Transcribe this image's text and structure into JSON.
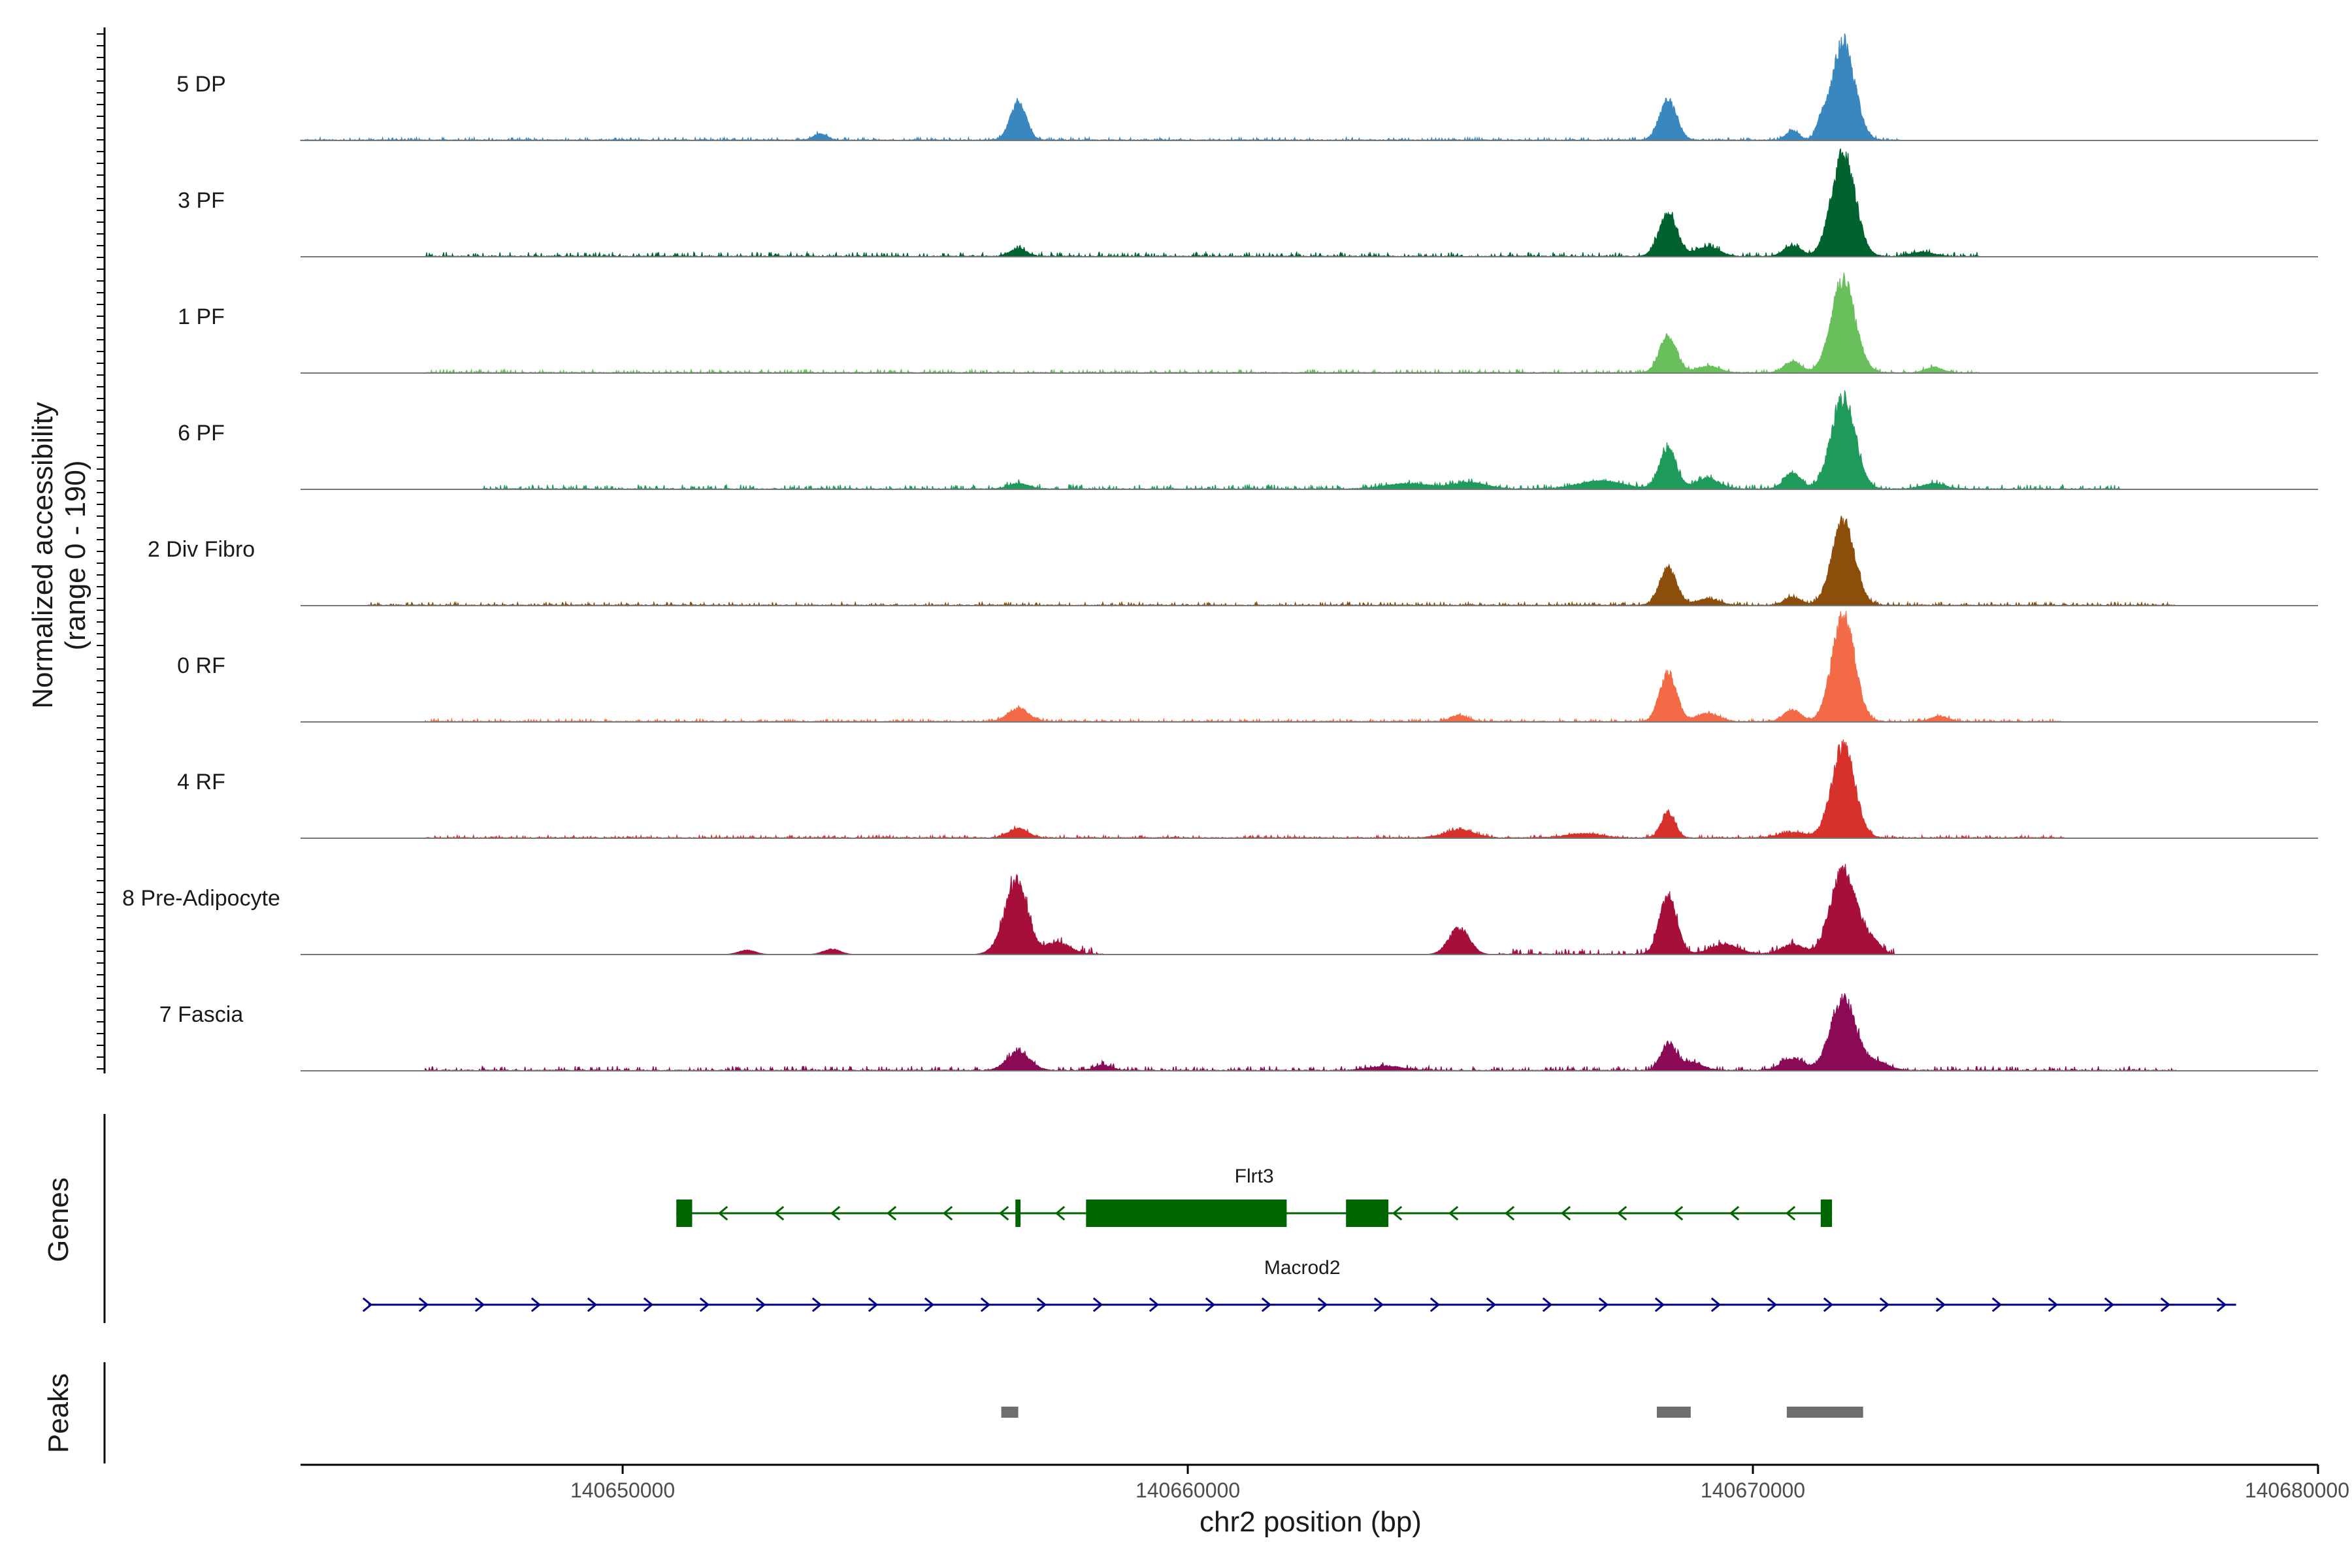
{
  "chart_data": {
    "type": "area",
    "title": "",
    "ylabel_line1": "Normalized accessibility",
    "ylabel_line2": "(range 0 - 190)",
    "ylim": [
      0,
      190
    ],
    "xlabel": "chr2 position (bp)",
    "xlim": [
      140644300,
      140680000
    ],
    "x_ticks": [
      140650000,
      140660000,
      140670000,
      140680000
    ],
    "x_tick_labels": [
      "140650000",
      "140660000",
      "140670000",
      "140680000"
    ],
    "grid": false,
    "series": [
      {
        "name": "5 DP",
        "color": "#3A87C0",
        "baseline": 4,
        "span": [
          140644300,
          140672600
        ],
        "peaks": [
          [
            140653500,
            12,
            120
          ],
          [
            140657000,
            70,
            140
          ],
          [
            140668500,
            75,
            150
          ],
          [
            140670700,
            18,
            110
          ],
          [
            140671200,
            25,
            80
          ],
          [
            140671600,
            185,
            200
          ]
        ],
        "noise": [
          [
            140644300,
            140680000,
            5
          ]
        ]
      },
      {
        "name": "3 PF",
        "color": "#00622E",
        "baseline": 4,
        "span": [
          140644300,
          140680000
        ],
        "peaks": [
          [
            140657000,
            14,
            150
          ],
          [
            140668500,
            80,
            160
          ],
          [
            140669200,
            18,
            200
          ],
          [
            140670700,
            20,
            150
          ],
          [
            140671600,
            190,
            210
          ],
          [
            140673000,
            8,
            200
          ]
        ],
        "noise": [
          [
            140646500,
            140674000,
            8
          ]
        ]
      },
      {
        "name": "1 PF",
        "color": "#69BF5B",
        "baseline": 4,
        "span": [
          140644300,
          140680000
        ],
        "peaks": [
          [
            140668500,
            70,
            150
          ],
          [
            140669200,
            12,
            200
          ],
          [
            140670700,
            20,
            150
          ],
          [
            140671600,
            175,
            210
          ],
          [
            140673200,
            10,
            150
          ]
        ],
        "noise": [
          [
            140646500,
            140674000,
            6
          ]
        ]
      },
      {
        "name": "6 PF",
        "color": "#1E9A5A",
        "baseline": 4,
        "span": [
          140644300,
          140680000
        ],
        "peaks": [
          [
            140657000,
            10,
            180
          ],
          [
            140663900,
            10,
            400
          ],
          [
            140665000,
            12,
            300
          ],
          [
            140667300,
            15,
            400
          ],
          [
            140668500,
            75,
            150
          ],
          [
            140669200,
            20,
            200
          ],
          [
            140670700,
            30,
            150
          ],
          [
            140671600,
            170,
            210
          ],
          [
            140673200,
            10,
            200
          ]
        ],
        "noise": [
          [
            140647500,
            140676500,
            8
          ]
        ]
      },
      {
        "name": "2 Div Fibro",
        "color": "#8C4E0B",
        "baseline": 4,
        "span": [
          140644300,
          140680000
        ],
        "peaks": [
          [
            140668500,
            72,
            150
          ],
          [
            140669200,
            12,
            200
          ],
          [
            140670700,
            15,
            150
          ],
          [
            140671600,
            158,
            200
          ]
        ],
        "noise": [
          [
            140645500,
            140677500,
            6
          ]
        ]
      },
      {
        "name": "0 RF",
        "color": "#F26B46",
        "baseline": 4,
        "span": [
          140644300,
          140680000
        ],
        "peaks": [
          [
            140657000,
            25,
            180
          ],
          [
            140664800,
            12,
            150
          ],
          [
            140668500,
            90,
            150
          ],
          [
            140669200,
            15,
            200
          ],
          [
            140670700,
            22,
            150
          ],
          [
            140671600,
            200,
            200
          ],
          [
            140673300,
            10,
            150
          ]
        ],
        "noise": [
          [
            140646500,
            140675500,
            5
          ]
        ]
      },
      {
        "name": "4 RF",
        "color": "#D6312B",
        "baseline": 4,
        "span": [
          140644300,
          140680000
        ],
        "peaks": [
          [
            140657000,
            18,
            170
          ],
          [
            140664800,
            15,
            250
          ],
          [
            140667000,
            8,
            300
          ],
          [
            140668500,
            48,
            120
          ],
          [
            140670700,
            10,
            250
          ],
          [
            140671600,
            175,
            200
          ]
        ],
        "noise": [
          [
            140646500,
            140675500,
            5
          ]
        ]
      },
      {
        "name": "8 Pre-Adipocyte",
        "color": "#A50F3A",
        "baseline": 4,
        "span": [
          140644300,
          140680000
        ],
        "peaks": [
          [
            140652200,
            8,
            150
          ],
          [
            140653700,
            10,
            150
          ],
          [
            140656800,
            30,
            200
          ],
          [
            140657000,
            120,
            180
          ],
          [
            140657700,
            22,
            220
          ],
          [
            140664800,
            50,
            180
          ],
          [
            140668500,
            110,
            150
          ],
          [
            140669500,
            18,
            250
          ],
          [
            140670700,
            18,
            200
          ],
          [
            140671600,
            160,
            220
          ],
          [
            140672100,
            25,
            150
          ]
        ],
        "noise": [
          [
            140656600,
            140658500,
            14
          ],
          [
            140665500,
            140672500,
            10
          ]
        ]
      },
      {
        "name": "7 Fascia",
        "color": "#8B0A56",
        "baseline": 4,
        "span": [
          140644300,
          140680000
        ],
        "peaks": [
          [
            140657000,
            35,
            200
          ],
          [
            140658500,
            10,
            150
          ],
          [
            140663500,
            8,
            300
          ],
          [
            140668500,
            50,
            130
          ],
          [
            140668900,
            15,
            200
          ],
          [
            140670700,
            22,
            200
          ],
          [
            140671600,
            135,
            220
          ],
          [
            140672200,
            15,
            200
          ]
        ],
        "noise": [
          [
            140646500,
            140677500,
            8
          ]
        ]
      }
    ],
    "genes_track_label": "Genes",
    "genes": [
      {
        "name": "Flrt3",
        "strand": "-",
        "color": "#006400",
        "start": 140650950,
        "end": 140671400,
        "exons": [
          [
            140650950,
            140651230
          ],
          [
            140656950,
            140657040
          ],
          [
            140658200,
            140661750
          ],
          [
            140662800,
            140663550
          ],
          [
            140671200,
            140671400
          ]
        ]
      },
      {
        "name": "Macrod2",
        "strand": "+",
        "color": "#00008B",
        "start": 140645500,
        "end": 140678550,
        "exons": []
      }
    ],
    "peaks_track_label": "Peaks",
    "peaks_color": "#6E6E6E",
    "peaks": [
      [
        140656700,
        140657000
      ],
      [
        140668300,
        140668900
      ],
      [
        140670600,
        140671950
      ]
    ]
  }
}
